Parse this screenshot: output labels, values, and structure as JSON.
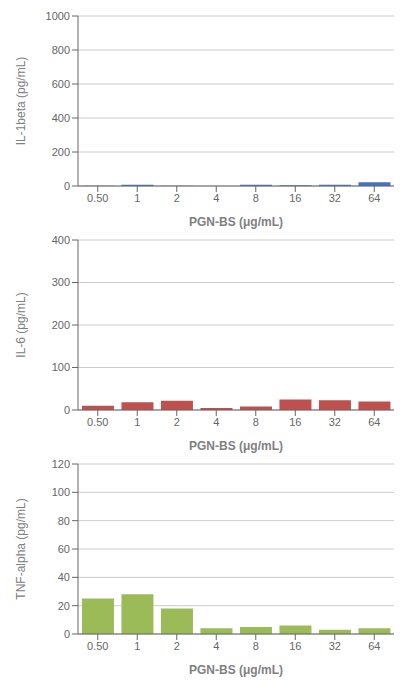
{
  "chart_data": [
    {
      "type": "bar",
      "categories": [
        "0.50",
        "1",
        "2",
        "4",
        "8",
        "16",
        "32",
        "64"
      ],
      "values": [
        2,
        8,
        2,
        0,
        8,
        5,
        8,
        22
      ],
      "color": "#4472C4",
      "xlabel": "PGN-BS (μg/mL)",
      "ylabel": "IL-1beta (pg/mL)",
      "ylim": [
        0,
        1000
      ],
      "yticks": [
        0,
        200,
        400,
        600,
        800,
        1000
      ],
      "grid": true
    },
    {
      "type": "bar",
      "categories": [
        "0.50",
        "1",
        "2",
        "4",
        "8",
        "16",
        "32",
        "64"
      ],
      "values": [
        10,
        18,
        22,
        5,
        8,
        25,
        23,
        20
      ],
      "color": "#C0504D",
      "xlabel": "PGN-BS (μg/mL)",
      "ylabel": "IL-6 (pg/mL)",
      "ylim": [
        0,
        400
      ],
      "yticks": [
        0,
        100,
        200,
        300,
        400
      ],
      "grid": true
    },
    {
      "type": "bar",
      "categories": [
        "0.50",
        "1",
        "2",
        "4",
        "8",
        "16",
        "32",
        "64"
      ],
      "values": [
        25,
        28,
        18,
        4,
        5,
        6,
        3,
        4
      ],
      "color": "#9BBB59",
      "xlabel": "PGN-BS (μg/mL)",
      "ylabel": "TNF-alpha (pg/mL)",
      "ylim": [
        0,
        120
      ],
      "yticks": [
        0,
        20,
        40,
        60,
        80,
        100,
        120
      ],
      "grid": true
    }
  ]
}
